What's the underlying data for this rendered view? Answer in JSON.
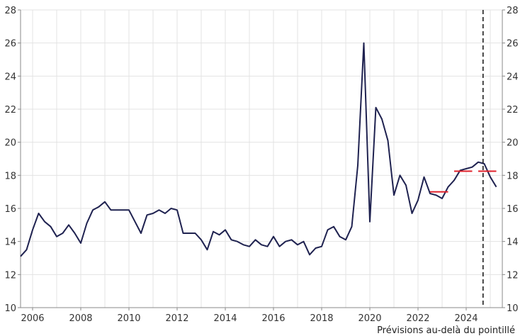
{
  "chart_data": {
    "type": "line",
    "title": "",
    "xlabel": "",
    "ylabel": "",
    "note": "Prévisions au-delà du pointillé",
    "xlim": [
      2005.5,
      2025.5
    ],
    "ylim": [
      10,
      28
    ],
    "x_ticks": [
      {
        "value": 2006,
        "label": "2006"
      },
      {
        "value": 2008,
        "label": "2008"
      },
      {
        "value": 2010,
        "label": "2010"
      },
      {
        "value": 2012,
        "label": "2012"
      },
      {
        "value": 2014,
        "label": "2014"
      },
      {
        "value": 2016,
        "label": "2016"
      },
      {
        "value": 2018,
        "label": "2018"
      },
      {
        "value": 2020,
        "label": "2020"
      },
      {
        "value": 2022,
        "label": "2022"
      },
      {
        "value": 2024,
        "label": "2024"
      }
    ],
    "y_ticks": [
      {
        "value": 10,
        "label": "10"
      },
      {
        "value": 12,
        "label": "12"
      },
      {
        "value": 14,
        "label": "14"
      },
      {
        "value": 16,
        "label": "16"
      },
      {
        "value": 18,
        "label": "18"
      },
      {
        "value": 20,
        "label": "20"
      },
      {
        "value": 22,
        "label": "22"
      },
      {
        "value": 24,
        "label": "24"
      },
      {
        "value": 26,
        "label": "26"
      },
      {
        "value": 28,
        "label": "28"
      }
    ],
    "grid": true,
    "forecast_start": 2024.7,
    "colors": {
      "series": "#1f2250",
      "averages": "#e0202a",
      "grid": "#e3e3e3",
      "axis": "#888888",
      "forecast_line": "#111111"
    },
    "series": [
      {
        "x": [
          2005.5,
          2005.75,
          2006.0,
          2006.25,
          2006.5,
          2006.75,
          2007.0,
          2007.25,
          2007.5,
          2007.75,
          2008.0,
          2008.25,
          2008.5,
          2008.75,
          2009.0,
          2009.25,
          2009.5,
          2009.75,
          2010.0,
          2010.25,
          2010.5,
          2010.75,
          2011.0,
          2011.25,
          2011.5,
          2011.75,
          2012.0,
          2012.25,
          2012.5,
          2012.75,
          2013.0,
          2013.25,
          2013.5,
          2013.75,
          2014.0,
          2014.25,
          2014.5,
          2014.75,
          2015.0,
          2015.25,
          2015.5,
          2015.75,
          2016.0,
          2016.25,
          2016.5,
          2016.75,
          2017.0,
          2017.25,
          2017.5,
          2017.75,
          2018.0,
          2018.25,
          2018.5,
          2018.75,
          2019.0,
          2019.25,
          2019.5,
          2019.75,
          2020.0,
          2020.25,
          2020.5,
          2020.75,
          2021.0,
          2021.25,
          2021.5,
          2021.75,
          2022.0,
          2022.25,
          2022.5,
          2022.75,
          2023.0,
          2023.25,
          2023.5,
          2023.75,
          2024.0,
          2024.25,
          2024.5,
          2024.75,
          2025.0,
          2025.25
        ],
        "values": [
          13.1,
          13.5,
          14.7,
          15.7,
          15.2,
          14.9,
          14.3,
          14.5,
          15.0,
          14.5,
          13.9,
          15.1,
          15.9,
          16.1,
          16.4,
          15.9,
          15.9,
          15.9,
          15.9,
          15.2,
          14.5,
          15.6,
          15.7,
          15.9,
          15.7,
          16.0,
          15.9,
          14.5,
          14.5,
          14.5,
          14.1,
          13.5,
          14.6,
          14.4,
          14.7,
          14.1,
          14.0,
          13.8,
          13.7,
          14.1,
          13.8,
          13.7,
          14.3,
          13.7,
          14.0,
          14.1,
          13.8,
          14.0,
          13.2,
          13.6,
          13.7,
          14.7,
          14.9,
          14.3,
          14.1,
          14.9,
          18.6,
          26.0,
          15.2,
          22.1,
          21.4,
          20.1,
          16.8,
          18.0,
          17.4,
          15.7,
          16.5,
          17.9,
          16.9,
          16.8,
          16.6,
          17.3,
          17.7,
          18.3,
          18.4,
          18.5,
          18.8,
          18.7,
          17.9,
          17.3
        ]
      }
    ],
    "averages": [
      {
        "x_start": 2022.5,
        "x_end": 2023.25,
        "value": 17.0
      },
      {
        "x_start": 2023.5,
        "x_end": 2024.25,
        "value": 18.25
      },
      {
        "x_start": 2024.5,
        "x_end": 2025.25,
        "value": 18.25
      }
    ]
  }
}
